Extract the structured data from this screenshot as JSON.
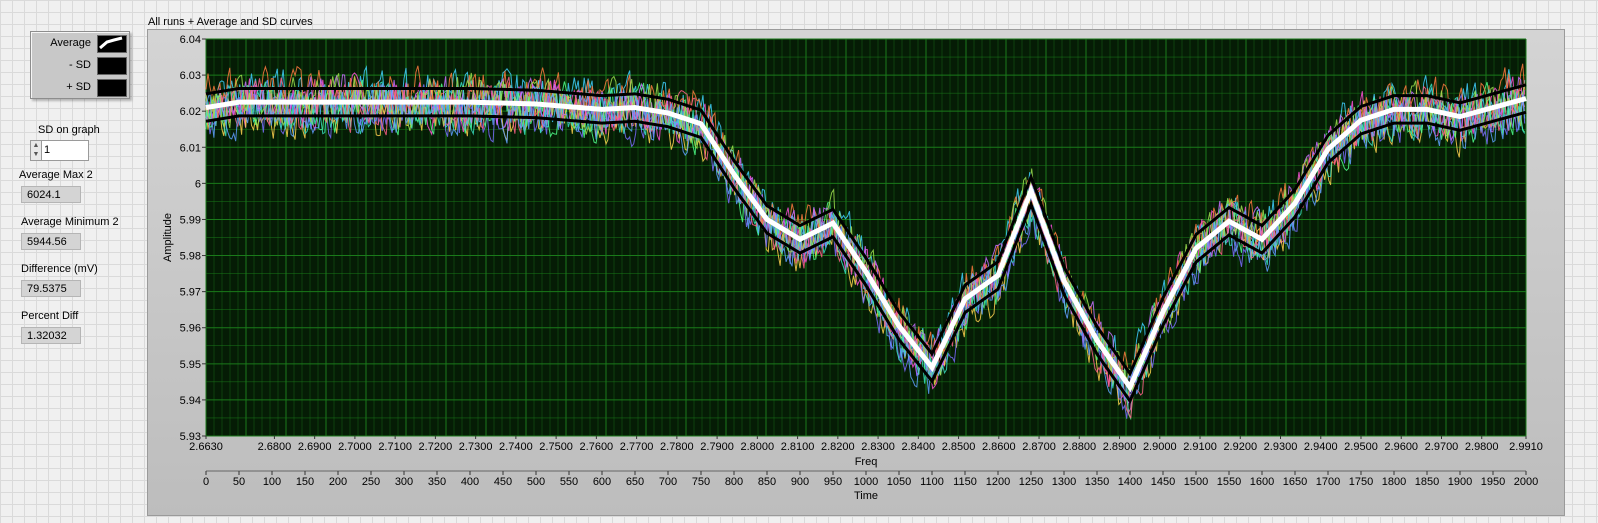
{
  "legend": {
    "items": [
      {
        "label": "Average"
      },
      {
        "label": "- SD"
      },
      {
        "label": "+ SD"
      }
    ]
  },
  "controls": {
    "sd_on_graph": {
      "label": "SD on graph",
      "value": "1"
    },
    "average_max": {
      "label": "Average Max 2",
      "value": "6024.1"
    },
    "average_min": {
      "label": "Average Minimum 2",
      "value": "5944.56"
    },
    "difference": {
      "label": "Difference (mV)",
      "value": "79.5375"
    },
    "percent_diff": {
      "label": "Percent Diff",
      "value": "1.32032"
    }
  },
  "graph": {
    "title": "All runs + Average and SD curves",
    "colors": {
      "plot_bg": "#051c05",
      "grid": "#1a7a1a",
      "average": "#ffffff",
      "sd": "#000000"
    }
  },
  "chart_data": {
    "type": "line",
    "title": "All runs + Average and SD curves",
    "ylabel": "Amplitude",
    "xlabel": "Freq",
    "x2label": "Time",
    "ylim": [
      5.93,
      6.04
    ],
    "xlim": [
      2.663,
      2.991
    ],
    "x2lim": [
      0,
      2000
    ],
    "yticks": [
      "6.04",
      "6.03",
      "6.02",
      "6.01",
      "6",
      "5.99",
      "5.98",
      "5.97",
      "5.96",
      "5.95",
      "5.94",
      "5.93"
    ],
    "xticks": [
      "2.6630",
      "2.6800",
      "2.6900",
      "2.7000",
      "2.7100",
      "2.7200",
      "2.7300",
      "2.7400",
      "2.7500",
      "2.7600",
      "2.7700",
      "2.7800",
      "2.7900",
      "2.8000",
      "2.8100",
      "2.8200",
      "2.8300",
      "2.8400",
      "2.8500",
      "2.8600",
      "2.8700",
      "2.8800",
      "2.8900",
      "2.9000",
      "2.9100",
      "2.9200",
      "2.9300",
      "2.9400",
      "2.9500",
      "2.9600",
      "2.9700",
      "2.9800",
      "2.9910"
    ],
    "x2ticks": [
      "0",
      "50",
      "100",
      "150",
      "200",
      "250",
      "300",
      "350",
      "400",
      "450",
      "500",
      "550",
      "600",
      "650",
      "700",
      "750",
      "800",
      "850",
      "900",
      "950",
      "1000",
      "1050",
      "1100",
      "1150",
      "1200",
      "1250",
      "1300",
      "1350",
      "1400",
      "1450",
      "1500",
      "1550",
      "1600",
      "1650",
      "1700",
      "1750",
      "1800",
      "1850",
      "1900",
      "1950",
      "2000"
    ],
    "average_curve": {
      "x": [
        0,
        50,
        100,
        200,
        300,
        400,
        500,
        600,
        650,
        700,
        750,
        800,
        850,
        900,
        950,
        1000,
        1050,
        1100,
        1150,
        1200,
        1250,
        1300,
        1350,
        1400,
        1450,
        1500,
        1550,
        1600,
        1650,
        1700,
        1750,
        1800,
        1850,
        1900,
        1950,
        2000
      ],
      "y": [
        6.021,
        6.0225,
        6.0225,
        6.0225,
        6.0225,
        6.0225,
        6.022,
        6.0205,
        6.021,
        6.0195,
        6.0165,
        6.0025,
        5.99,
        5.9845,
        5.989,
        5.9755,
        5.9605,
        5.949,
        5.968,
        5.9745,
        5.998,
        5.973,
        5.9565,
        5.9435,
        5.9645,
        5.982,
        5.9895,
        5.9845,
        5.9945,
        6.0095,
        6.0175,
        6.0205,
        6.0205,
        6.0185,
        6.021,
        6.0235
      ]
    },
    "sd_offset": 0.0038,
    "series": [
      {
        "values": "runs (noisy, ~10 overlaid)"
      }
    ]
  }
}
